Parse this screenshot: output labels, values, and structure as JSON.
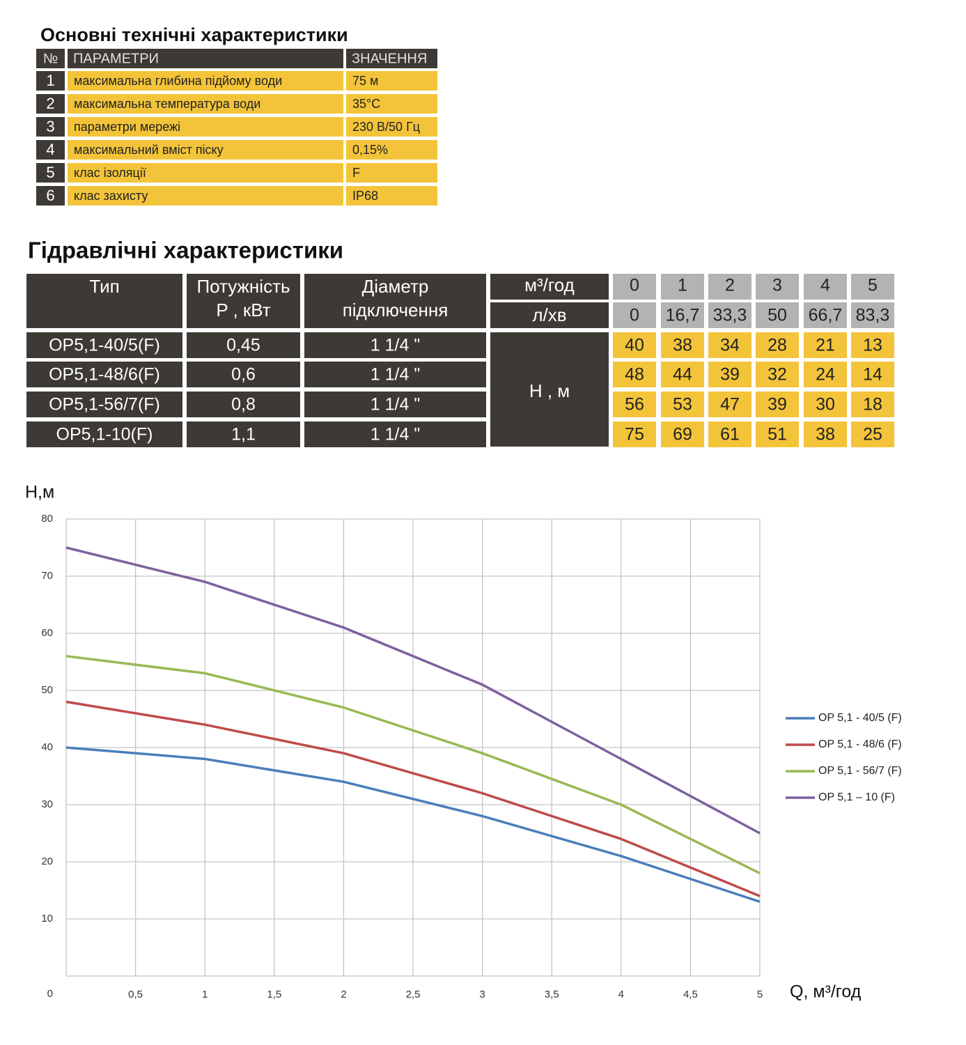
{
  "specs": {
    "title": "Основні технічні характеристики",
    "header": [
      "№",
      "ПАРАМЕТРИ",
      "ЗНАЧЕННЯ"
    ],
    "rows": [
      [
        "1",
        "максимальна глибина підйому води",
        "75 м"
      ],
      [
        "2",
        "максимальна температура води",
        "35°C"
      ],
      [
        "3",
        "параметри мережі",
        "230 В/50 Гц"
      ],
      [
        "4",
        "максимальний вміст піску",
        "0,15%"
      ],
      [
        "5",
        "клас ізоляції",
        "F"
      ],
      [
        "6",
        "клас захисту",
        "IP68"
      ]
    ]
  },
  "hydraulics": {
    "title": "Гідравлічні характеристики",
    "header": {
      "type": [
        "Тип"
      ],
      "power": [
        "Потужність",
        "P , кВт"
      ],
      "diameter": [
        "Діаметр",
        "підключення"
      ],
      "flow_m3_unit": "м³/год",
      "flow_l_unit": "л/хв",
      "head_unit": "H , м"
    },
    "flow_m3": [
      "0",
      "1",
      "2",
      "3",
      "4",
      "5"
    ],
    "flow_l": [
      "0",
      "16,7",
      "33,3",
      "50",
      "66,7",
      "83,3"
    ],
    "rows": [
      {
        "type": "OP5,1-40/5(F)",
        "power": "0,45",
        "diameter": "1 1/4 \"",
        "heads": [
          "40",
          "38",
          "34",
          "28",
          "21",
          "13"
        ]
      },
      {
        "type": "OP5,1-48/6(F)",
        "power": "0,6",
        "diameter": "1 1/4 \"",
        "heads": [
          "48",
          "44",
          "39",
          "32",
          "24",
          "14"
        ]
      },
      {
        "type": "OP5,1-56/7(F)",
        "power": "0,8",
        "diameter": "1 1/4 \"",
        "heads": [
          "56",
          "53",
          "47",
          "39",
          "30",
          "18"
        ]
      },
      {
        "type": "OP5,1-10(F)",
        "power": "1,1",
        "diameter": "1 1/4 \"",
        "heads": [
          "75",
          "69",
          "61",
          "51",
          "38",
          "25"
        ]
      }
    ]
  },
  "chart_data": {
    "type": "line",
    "y_label": "H,м",
    "x_label": "Q,  м³/год",
    "x": [
      0,
      1,
      2,
      3,
      4,
      5
    ],
    "series": [
      {
        "name": "OP 5,1 - 40/5 (F)",
        "color": "#4a7ebb",
        "values": [
          40,
          38,
          34,
          28,
          21,
          13
        ]
      },
      {
        "name": "OP 5,1 - 48/6 (F)",
        "color": "#be4b48",
        "values": [
          48,
          44,
          39,
          32,
          24,
          14
        ]
      },
      {
        "name": "OP 5,1 - 56/7 (F)",
        "color": "#98b954",
        "values": [
          56,
          53,
          47,
          39,
          30,
          18
        ]
      },
      {
        "name": "OP 5,1 – 10 (F)",
        "color": "#7d60a0",
        "values": [
          75,
          69,
          61,
          51,
          38,
          25
        ]
      }
    ],
    "xlim": [
      0,
      5
    ],
    "ylim": [
      0,
      80
    ],
    "xticks": [
      {
        "value": 0.5,
        "label": "0,5"
      },
      1,
      {
        "value": 1.5,
        "label": "1,5"
      },
      2,
      {
        "value": 2.5,
        "label": "2,5"
      },
      3,
      {
        "value": 3.5,
        "label": "3,5"
      },
      4,
      {
        "value": 4.5,
        "label": "4,5"
      },
      5
    ],
    "yticks": [
      0,
      10,
      20,
      30,
      40,
      50,
      60,
      70,
      80
    ],
    "grid": true,
    "legend": "right"
  }
}
